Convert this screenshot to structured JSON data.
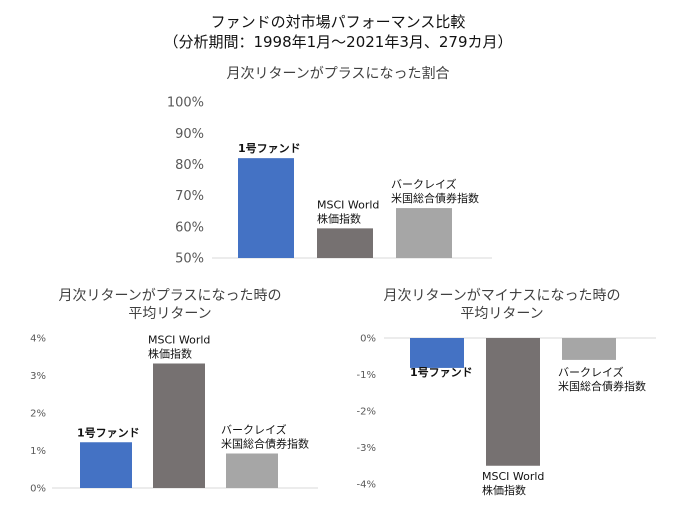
{
  "header": {
    "title": "ファンドの対市場パフォーマンス比較",
    "subtitle": "（分析期間：1998年1月～2021年3月、279カ月）"
  },
  "chart_data": [
    {
      "type": "bar",
      "title": "月次リターンがプラスになった割合",
      "categories": [
        "1号ファンド",
        "MSCI World 株価指数",
        "バークレイズ 米国総合債券指数"
      ],
      "label_lines": [
        [
          "1号ファンド"
        ],
        [
          "MSCI World",
          "株価指数"
        ],
        [
          "バークレイズ",
          "米国総合債券指数"
        ]
      ],
      "values": [
        82,
        59.5,
        66
      ],
      "unit": "%",
      "ylim": [
        50,
        100
      ],
      "yticks": [
        50,
        60,
        70,
        80,
        90,
        100
      ],
      "grid": false,
      "colors": [
        "#4472c4",
        "#767171",
        "#a6a6a6"
      ]
    },
    {
      "type": "bar",
      "title": "月次リターンがプラスになった時の 平均リターン",
      "title_lines": [
        "月次リターンがプラスになった時の",
        "平均リターン"
      ],
      "categories": [
        "1号ファンド",
        "MSCI World 株価指数",
        "バークレイズ 米国総合債券指数"
      ],
      "label_lines": [
        [
          "1号ファンド"
        ],
        [
          "MSCI World",
          "株価指数"
        ],
        [
          "バークレイズ",
          "米国総合債券指数"
        ]
      ],
      "values": [
        1.22,
        3.32,
        0.92
      ],
      "unit": "%",
      "ylim": [
        0,
        4
      ],
      "yticks": [
        0,
        1,
        2,
        3,
        4
      ],
      "grid": false,
      "colors": [
        "#4472c4",
        "#767171",
        "#a6a6a6"
      ]
    },
    {
      "type": "bar",
      "title": "月次リターンがマイナスになった時の 平均リターン",
      "title_lines": [
        "月次リターンがマイナスになった時の",
        "平均リターン"
      ],
      "categories": [
        "1号ファンド",
        "MSCI World 株価指数",
        "バークレイズ 米国総合債券指数"
      ],
      "label_lines": [
        [
          "1号ファンド"
        ],
        [
          "MSCI World",
          "株価指数"
        ],
        [
          "バークレイズ",
          "米国総合債券指数"
        ]
      ],
      "values": [
        -0.82,
        -3.5,
        -0.6
      ],
      "unit": "%",
      "ylim": [
        -4,
        0
      ],
      "yticks": [
        0,
        -1,
        -2,
        -3,
        -4
      ],
      "grid": false,
      "colors": [
        "#4472c4",
        "#767171",
        "#a6a6a6"
      ]
    }
  ]
}
